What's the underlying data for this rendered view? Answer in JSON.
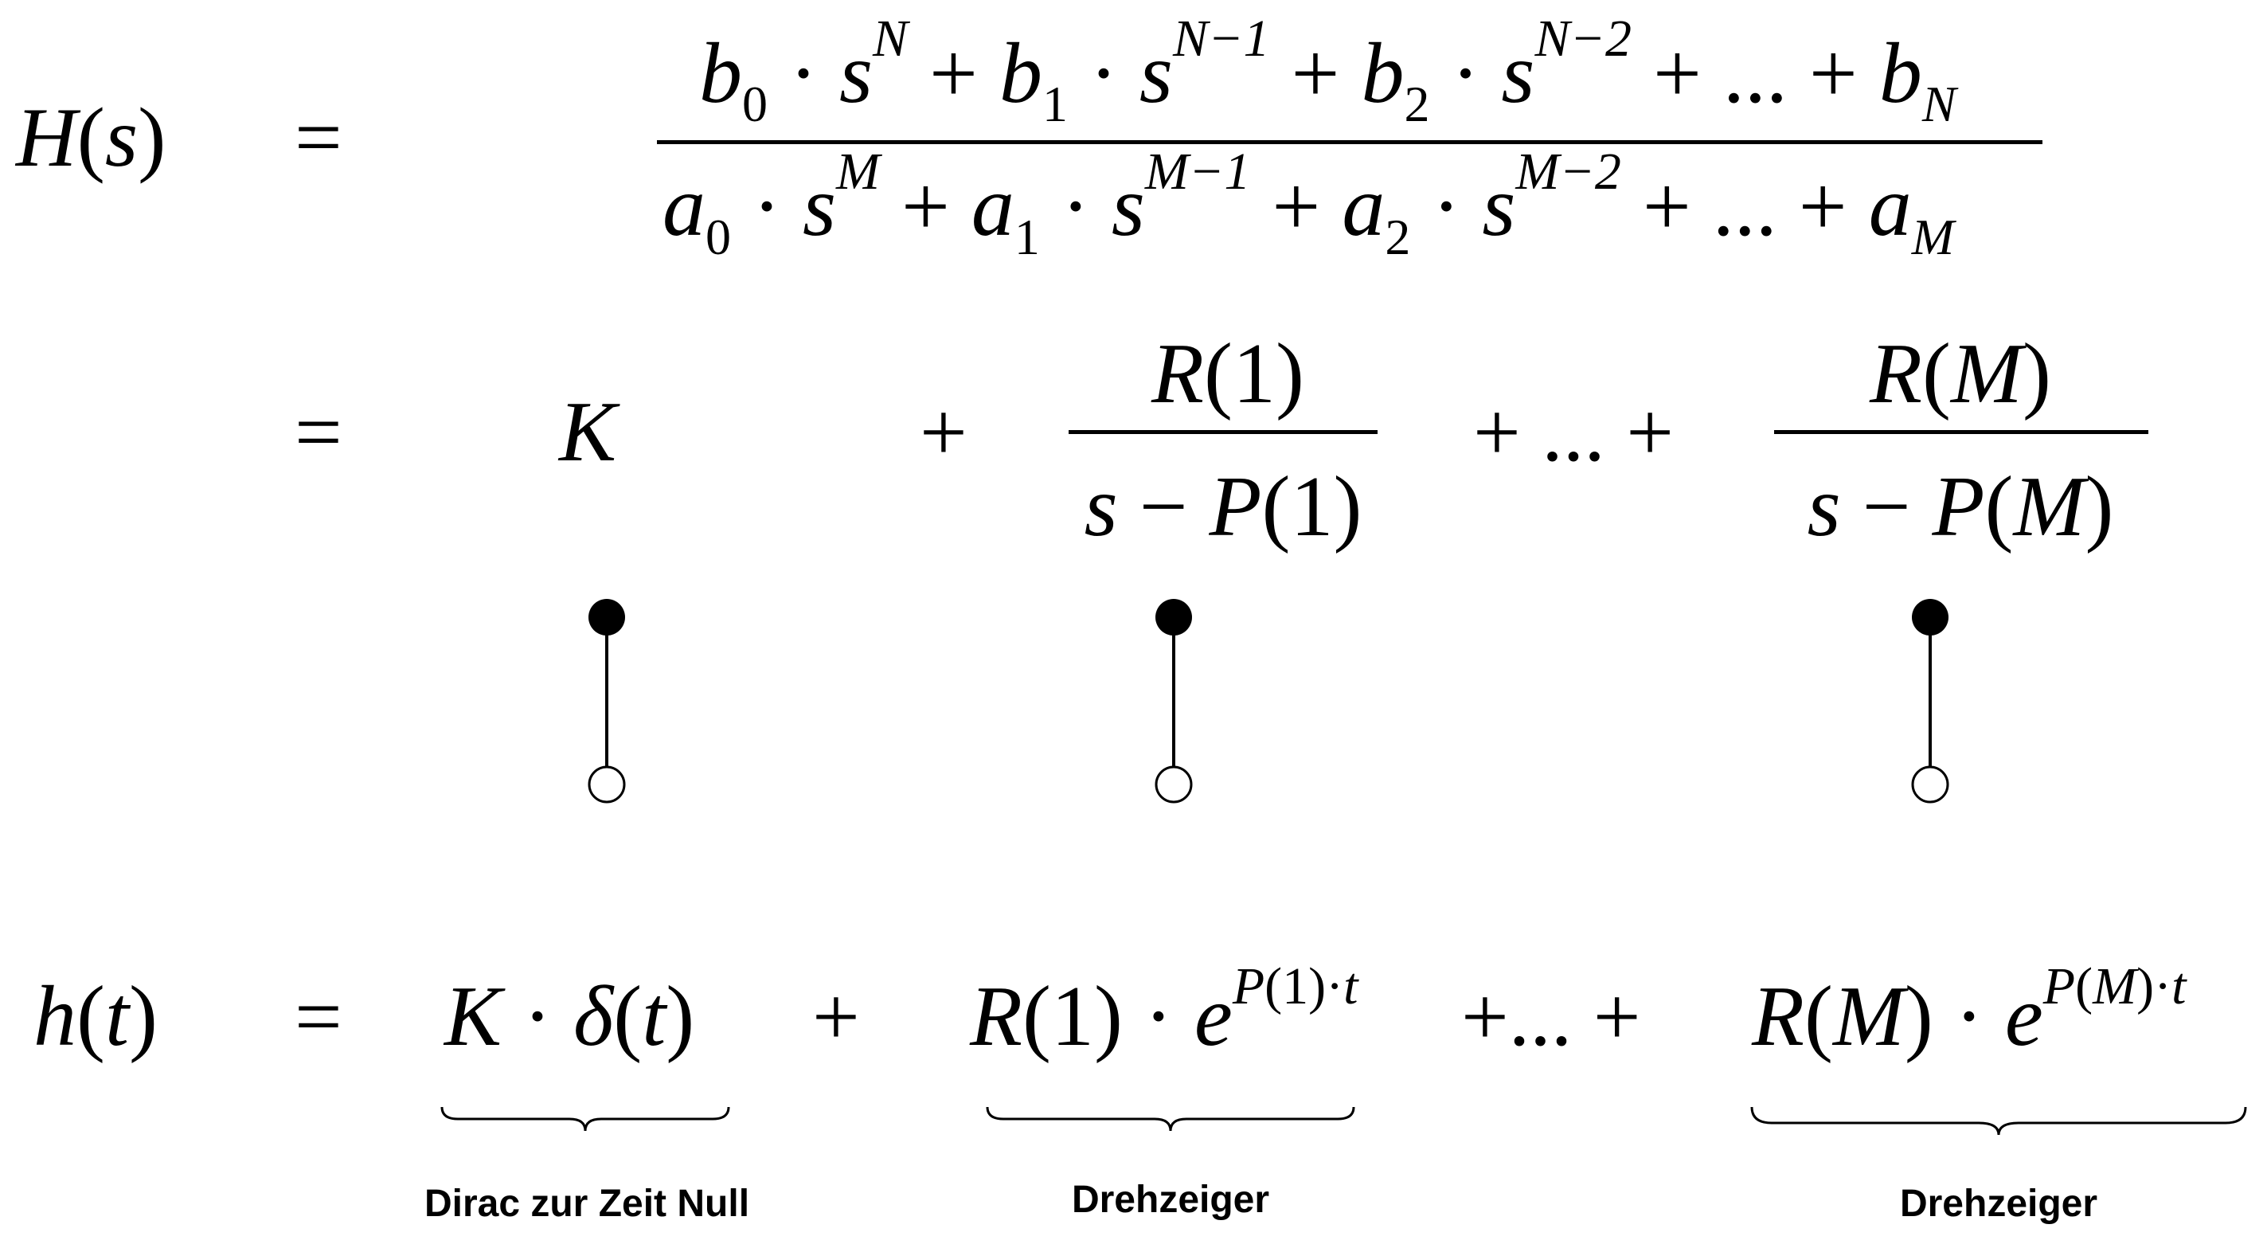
{
  "transfer_function": {
    "lhs": "H(s)",
    "eq1": "=",
    "numerator": "b₀ · sᴺ + b₁ · sᴺ⁻¹ + b₂ · sᴺ⁻² + ... + bɴ",
    "denominator": "a₀ · sᴹ + a₁ · sᴹ⁻¹ + a₂ · sᴹ⁻² + ... + aᴹ"
  },
  "partial_fractions": {
    "eq2": "=",
    "K": "K",
    "plus1": "+",
    "term1_num": "R(1)",
    "term1_den": "s − P(1)",
    "ellipsis": "+ ... +",
    "termM_num": "R(M)",
    "termM_den": "s − P(M)"
  },
  "correspondence_links": [
    "K",
    "R(1)/(s−P(1))",
    "R(M)/(s−P(M))"
  ],
  "impulse_response": {
    "lhs": "h(t)",
    "eq3": "=",
    "dirac": "K · δ(t)",
    "plus": "+",
    "term1": "R(1) · e",
    "term1_exp": "P(1)·t",
    "ellipsis": "+ ... +",
    "termM": "R(M) · e",
    "termM_exp": "P(M)·t"
  },
  "captions": {
    "dirac": "Dirac zur Zeit Null",
    "rot1": "Drehzeiger",
    "rot2": "Drehzeiger"
  },
  "colors": {
    "ink": "#000000",
    "background": "#ffffff"
  }
}
